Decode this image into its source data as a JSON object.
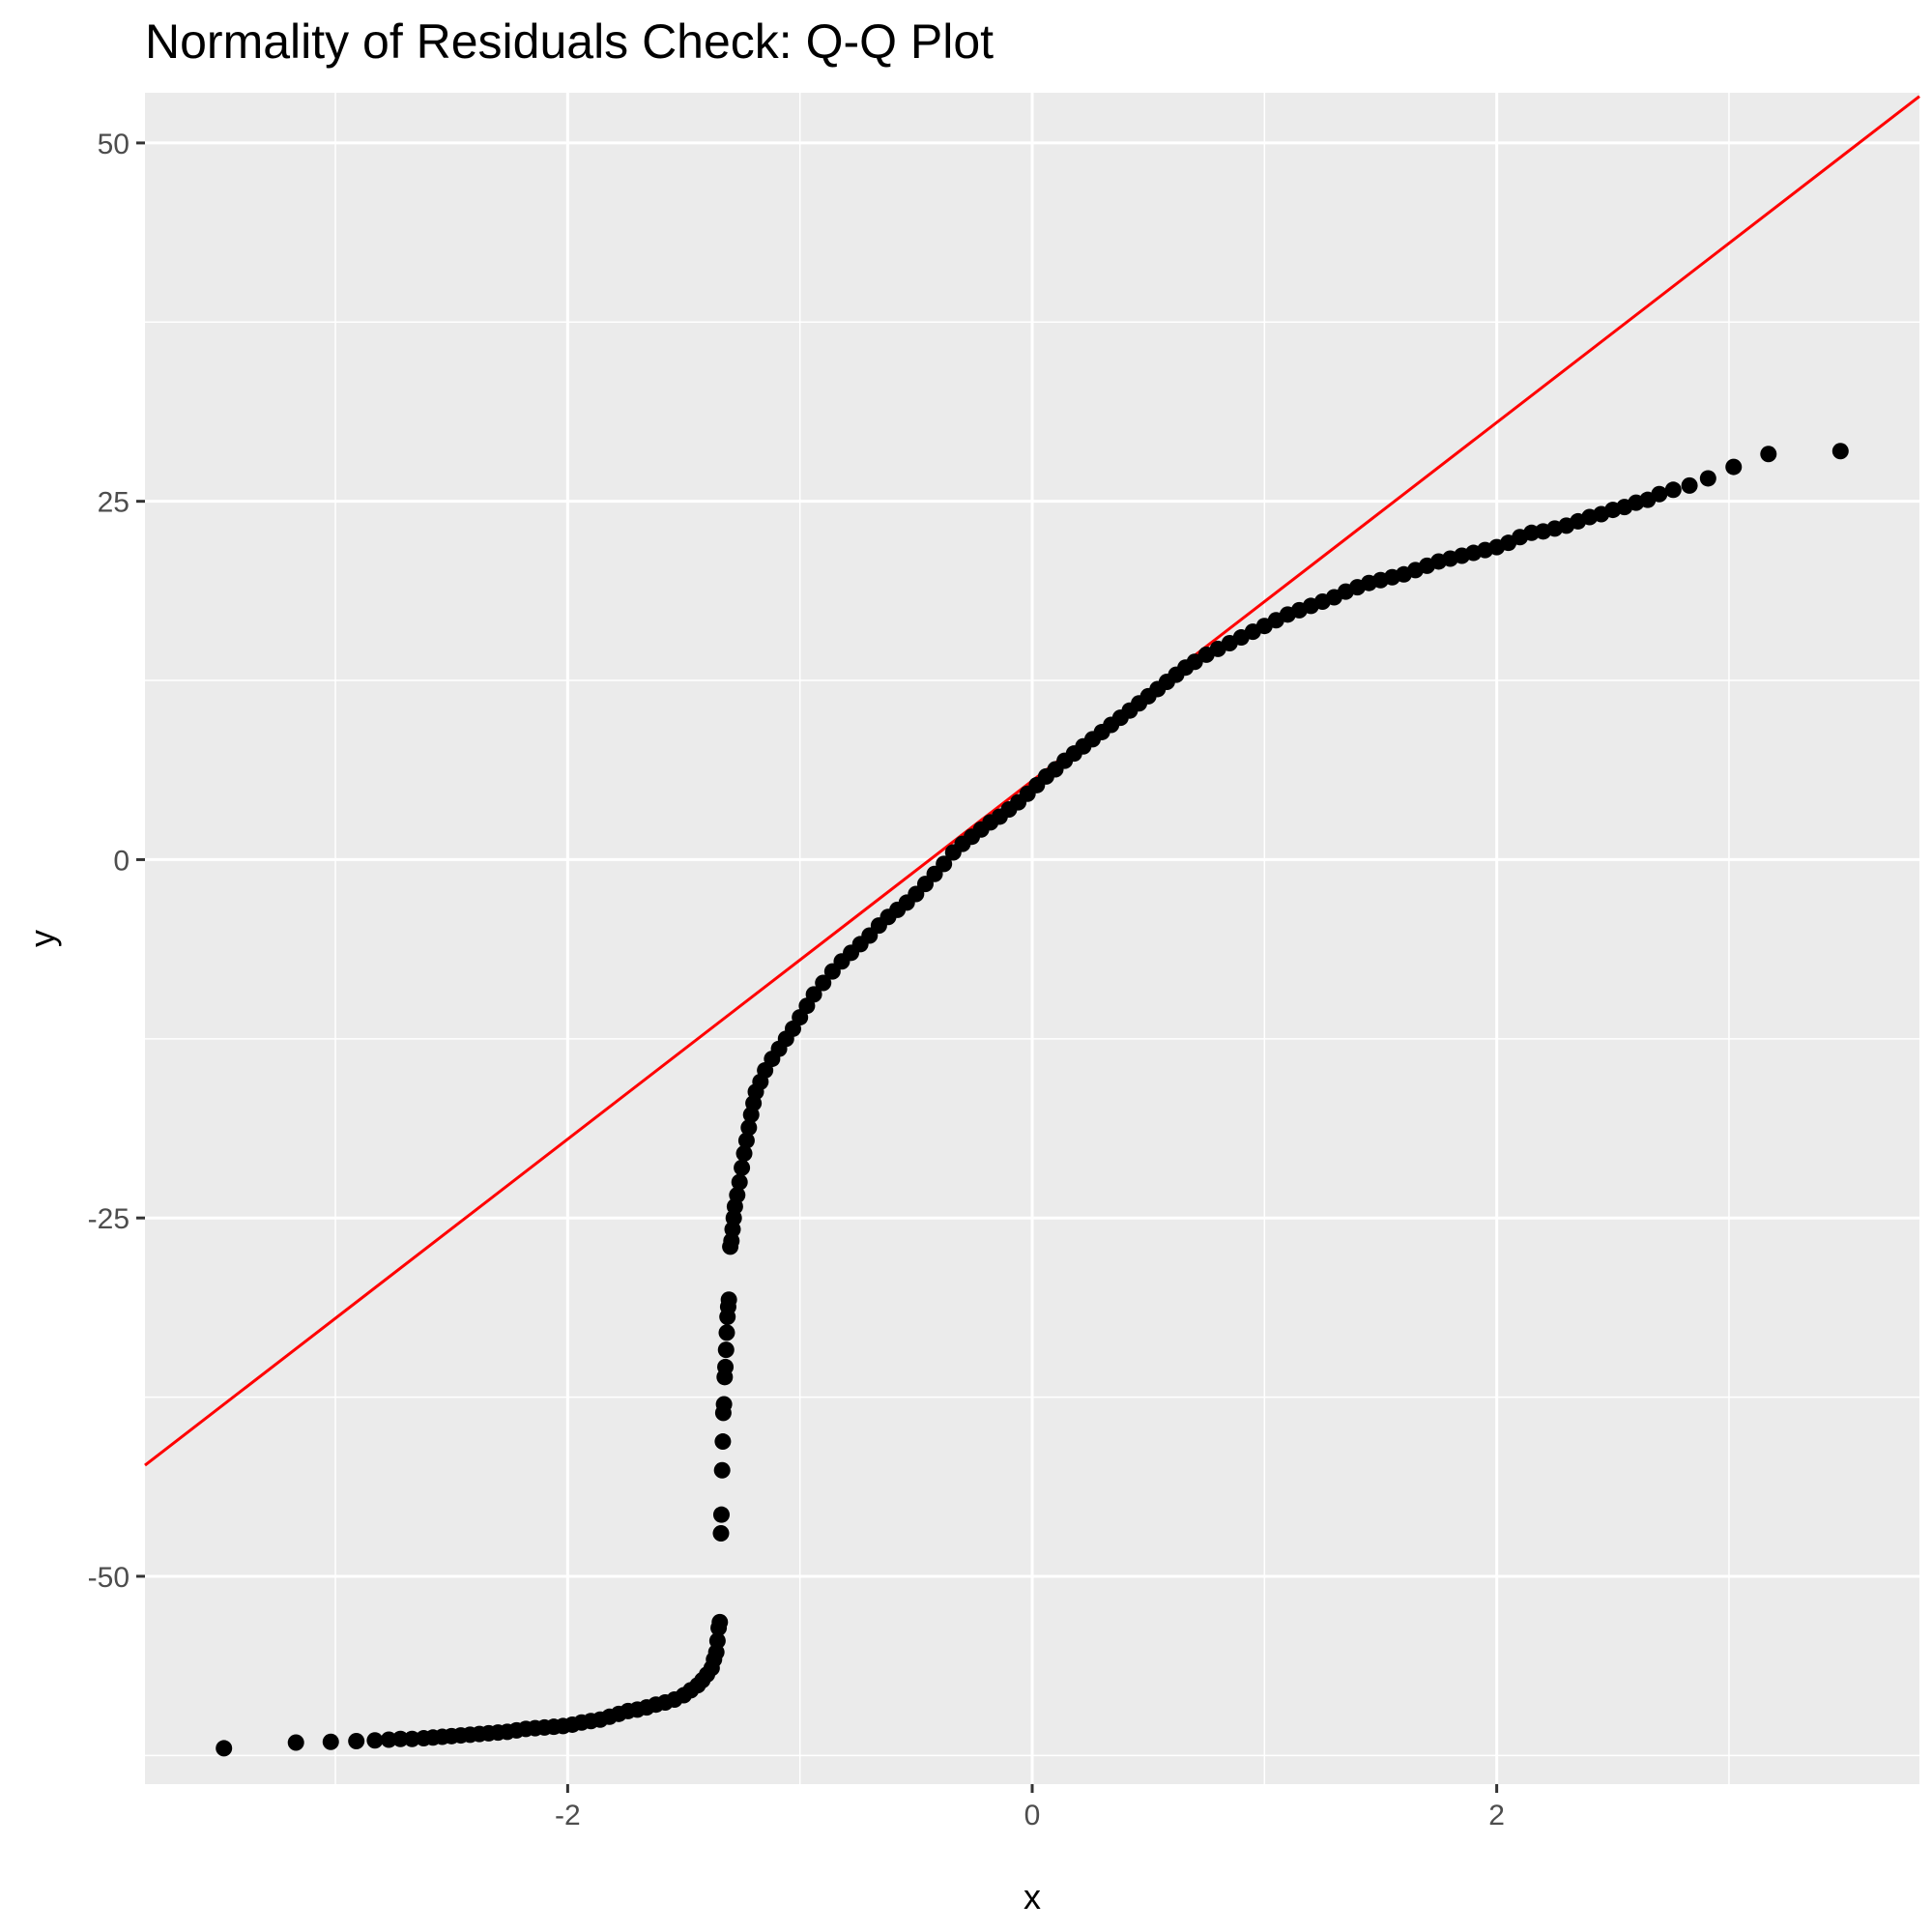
{
  "chart_data": {
    "type": "scatter",
    "title": "Normality of Residuals Check: Q-Q Plot",
    "xlabel": "x",
    "ylabel": "y",
    "xlim": [
      -3.82,
      3.82
    ],
    "ylim": [
      -64.5,
      53.5
    ],
    "x_ticks": [
      -2,
      0,
      2
    ],
    "x_tick_labels": [
      "-2",
      "0",
      "2"
    ],
    "y_ticks": [
      -50,
      -25,
      0,
      25,
      50
    ],
    "y_tick_labels": [
      "-50",
      "-25",
      "0",
      "25",
      "50"
    ],
    "grid": true,
    "reference_line": {
      "slope": 12.5,
      "intercept": 5.5,
      "color": "#ff0000"
    },
    "points_color": "#000000",
    "panel_background": "#ebebeb",
    "grid_color": "#ffffff",
    "points": [
      [
        -3.48,
        -62.0
      ],
      [
        -3.17,
        -61.6
      ],
      [
        -3.02,
        -61.55
      ],
      [
        -2.91,
        -61.5
      ],
      [
        -2.83,
        -61.45
      ],
      [
        -2.77,
        -61.4
      ],
      [
        -2.72,
        -61.35
      ],
      [
        -2.67,
        -61.35
      ],
      [
        -2.62,
        -61.3
      ],
      [
        -2.58,
        -61.25
      ],
      [
        -2.54,
        -61.2
      ],
      [
        -2.5,
        -61.15
      ],
      [
        -2.46,
        -61.1
      ],
      [
        -2.42,
        -61.05
      ],
      [
        -2.38,
        -61.0
      ],
      [
        -2.34,
        -60.95
      ],
      [
        -2.3,
        -60.9
      ],
      [
        -2.26,
        -60.85
      ],
      [
        -2.22,
        -60.75
      ],
      [
        -2.18,
        -60.65
      ],
      [
        -2.14,
        -60.6
      ],
      [
        -2.1,
        -60.55
      ],
      [
        -2.06,
        -60.5
      ],
      [
        -2.02,
        -60.45
      ],
      [
        -1.98,
        -60.35
      ],
      [
        -1.94,
        -60.2
      ],
      [
        -1.9,
        -60.1
      ],
      [
        -1.86,
        -60.0
      ],
      [
        -1.82,
        -59.8
      ],
      [
        -1.78,
        -59.6
      ],
      [
        -1.74,
        -59.4
      ],
      [
        -1.7,
        -59.3
      ],
      [
        -1.66,
        -59.15
      ],
      [
        -1.62,
        -58.95
      ],
      [
        -1.58,
        -58.8
      ],
      [
        -1.54,
        -58.6
      ],
      [
        -1.5,
        -58.3
      ],
      [
        -1.47,
        -57.95
      ],
      [
        -1.44,
        -57.6
      ],
      [
        -1.42,
        -57.25
      ],
      [
        -1.4,
        -56.85
      ],
      [
        -1.38,
        -56.4
      ],
      [
        -1.37,
        -55.8
      ],
      [
        -1.36,
        -55.3
      ],
      [
        -1.355,
        -54.5
      ],
      [
        -1.35,
        -53.6
      ],
      [
        -1.345,
        -53.2
      ],
      [
        -1.34,
        -47.0
      ],
      [
        -1.338,
        -45.7
      ],
      [
        -1.335,
        -42.6
      ],
      [
        -1.332,
        -40.6
      ],
      [
        -1.33,
        -38.6
      ],
      [
        -1.327,
        -38.0
      ],
      [
        -1.324,
        -36.1
      ],
      [
        -1.321,
        -35.4
      ],
      [
        -1.318,
        -34.2
      ],
      [
        -1.315,
        -33.0
      ],
      [
        -1.312,
        -31.9
      ],
      [
        -1.309,
        -31.2
      ],
      [
        -1.306,
        -30.7
      ],
      [
        -1.3,
        -27.0
      ],
      [
        -1.295,
        -26.6
      ],
      [
        -1.29,
        -25.8
      ],
      [
        -1.285,
        -25.0
      ],
      [
        -1.28,
        -24.2
      ],
      [
        -1.27,
        -23.4
      ],
      [
        -1.26,
        -22.5
      ],
      [
        -1.25,
        -21.5
      ],
      [
        -1.24,
        -20.5
      ],
      [
        -1.23,
        -19.6
      ],
      [
        -1.22,
        -18.7
      ],
      [
        -1.21,
        -17.8
      ],
      [
        -1.2,
        -17.0
      ],
      [
        -1.19,
        -16.2
      ],
      [
        -1.17,
        -15.5
      ],
      [
        -1.15,
        -14.7
      ],
      [
        -1.12,
        -13.9
      ],
      [
        -1.09,
        -13.2
      ],
      [
        -1.06,
        -12.5
      ],
      [
        -1.03,
        -11.8
      ],
      [
        -1.0,
        -11.0
      ],
      [
        -0.97,
        -10.2
      ],
      [
        -0.94,
        -9.4
      ],
      [
        -0.9,
        -8.6
      ],
      [
        -0.86,
        -7.8
      ],
      [
        -0.82,
        -7.1
      ],
      [
        -0.78,
        -6.5
      ],
      [
        -0.74,
        -5.9
      ],
      [
        -0.7,
        -5.3
      ],
      [
        -0.66,
        -4.6
      ],
      [
        -0.62,
        -4.0
      ],
      [
        -0.58,
        -3.5
      ],
      [
        -0.54,
        -3.0
      ],
      [
        -0.5,
        -2.4
      ],
      [
        -0.46,
        -1.7
      ],
      [
        -0.42,
        -1.0
      ],
      [
        -0.38,
        -0.3
      ],
      [
        -0.34,
        0.5
      ],
      [
        -0.3,
        1.1
      ],
      [
        -0.26,
        1.6
      ],
      [
        -0.22,
        2.1
      ],
      [
        -0.18,
        2.6
      ],
      [
        -0.14,
        3.0
      ],
      [
        -0.1,
        3.5
      ],
      [
        -0.06,
        4.0
      ],
      [
        -0.02,
        4.6
      ],
      [
        0.02,
        5.2
      ],
      [
        0.06,
        5.8
      ],
      [
        0.1,
        6.3
      ],
      [
        0.14,
        6.9
      ],
      [
        0.18,
        7.4
      ],
      [
        0.22,
        7.9
      ],
      [
        0.26,
        8.4
      ],
      [
        0.3,
        8.9
      ],
      [
        0.34,
        9.4
      ],
      [
        0.38,
        9.9
      ],
      [
        0.42,
        10.4
      ],
      [
        0.46,
        10.9
      ],
      [
        0.5,
        11.4
      ],
      [
        0.54,
        11.9
      ],
      [
        0.58,
        12.4
      ],
      [
        0.62,
        12.9
      ],
      [
        0.66,
        13.4
      ],
      [
        0.7,
        13.8
      ],
      [
        0.75,
        14.3
      ],
      [
        0.8,
        14.7
      ],
      [
        0.85,
        15.1
      ],
      [
        0.9,
        15.5
      ],
      [
        0.95,
        15.9
      ],
      [
        1.0,
        16.3
      ],
      [
        1.05,
        16.7
      ],
      [
        1.1,
        17.1
      ],
      [
        1.15,
        17.4
      ],
      [
        1.2,
        17.7
      ],
      [
        1.25,
        18.0
      ],
      [
        1.3,
        18.3
      ],
      [
        1.35,
        18.7
      ],
      [
        1.4,
        19.0
      ],
      [
        1.45,
        19.3
      ],
      [
        1.5,
        19.5
      ],
      [
        1.55,
        19.7
      ],
      [
        1.6,
        19.9
      ],
      [
        1.65,
        20.2
      ],
      [
        1.7,
        20.5
      ],
      [
        1.75,
        20.8
      ],
      [
        1.8,
        21.0
      ],
      [
        1.85,
        21.2
      ],
      [
        1.9,
        21.4
      ],
      [
        1.95,
        21.6
      ],
      [
        2.0,
        21.8
      ],
      [
        2.05,
        22.1
      ],
      [
        2.1,
        22.5
      ],
      [
        2.15,
        22.8
      ],
      [
        2.2,
        22.9
      ],
      [
        2.25,
        23.1
      ],
      [
        2.3,
        23.3
      ],
      [
        2.35,
        23.6
      ],
      [
        2.4,
        23.9
      ],
      [
        2.45,
        24.1
      ],
      [
        2.5,
        24.4
      ],
      [
        2.55,
        24.6
      ],
      [
        2.6,
        24.9
      ],
      [
        2.65,
        25.1
      ],
      [
        2.7,
        25.5
      ],
      [
        2.76,
        25.8
      ],
      [
        2.83,
        26.1
      ],
      [
        2.91,
        26.6
      ],
      [
        3.02,
        27.4
      ],
      [
        3.17,
        28.3
      ],
      [
        3.48,
        28.5
      ]
    ]
  }
}
